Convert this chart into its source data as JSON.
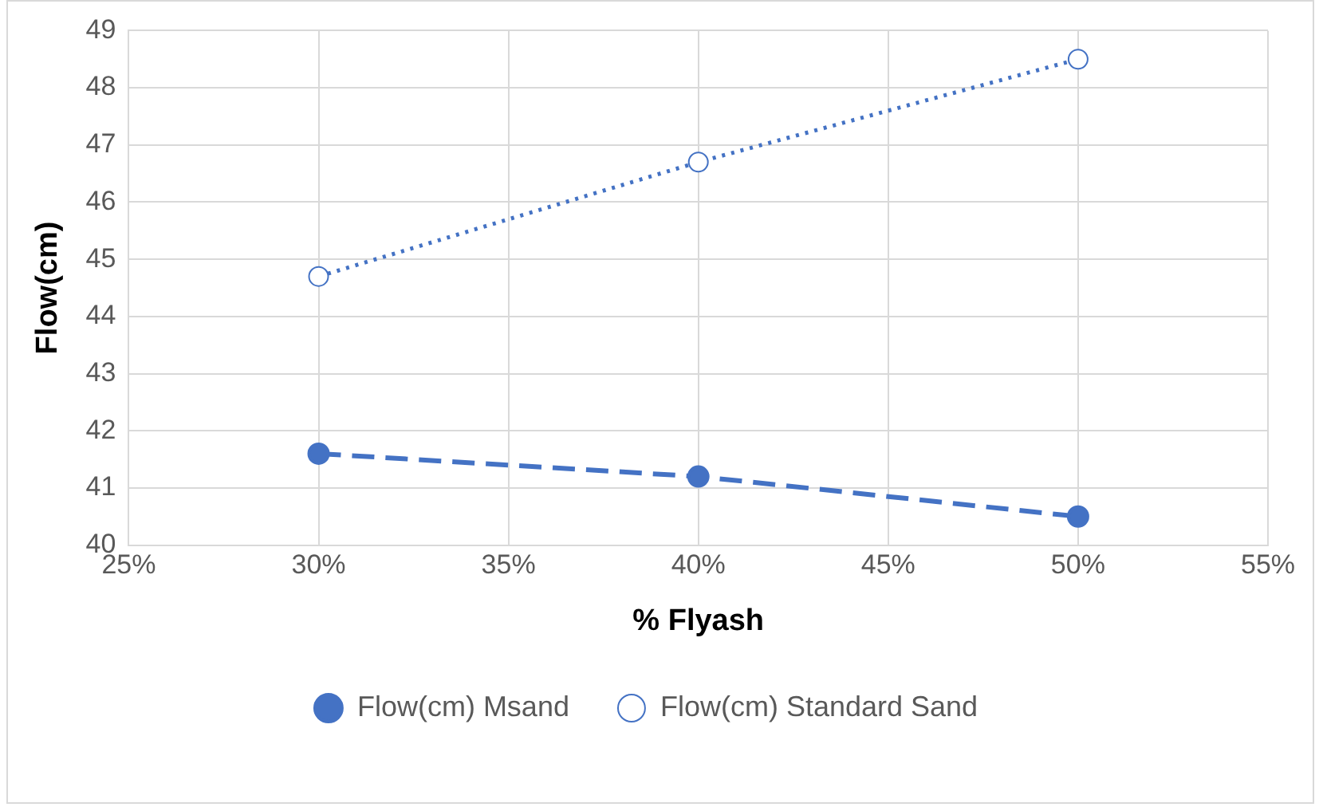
{
  "chart_data": {
    "type": "line",
    "xlabel": "% Flyash",
    "ylabel": "Flow(cm)",
    "x": [
      30,
      40,
      50
    ],
    "series": [
      {
        "name": "Flow(cm) Msand",
        "color": "#4472c4",
        "values": [
          41.6,
          41.2,
          40.5
        ],
        "marker": "circle",
        "line_style": "dashed"
      },
      {
        "name": "Flow(cm) Standard Sand",
        "color": "#4472c4",
        "values": [
          44.7,
          46.7,
          48.5
        ],
        "marker": "circle",
        "line_style": "dotted"
      }
    ],
    "xlim": [
      25,
      55
    ],
    "xticks": [
      {
        "value": 25,
        "label": "25%"
      },
      {
        "value": 30,
        "label": "30%"
      },
      {
        "value": 35,
        "label": "35%"
      },
      {
        "value": 40,
        "label": "40%"
      },
      {
        "value": 45,
        "label": "45%"
      },
      {
        "value": 50,
        "label": "50%"
      },
      {
        "value": 55,
        "label": "55%"
      }
    ],
    "ylim": [
      40,
      49
    ],
    "yticks": [
      40,
      41,
      42,
      43,
      44,
      45,
      46,
      47,
      48,
      49
    ],
    "grid": true,
    "legend": "bottom"
  }
}
